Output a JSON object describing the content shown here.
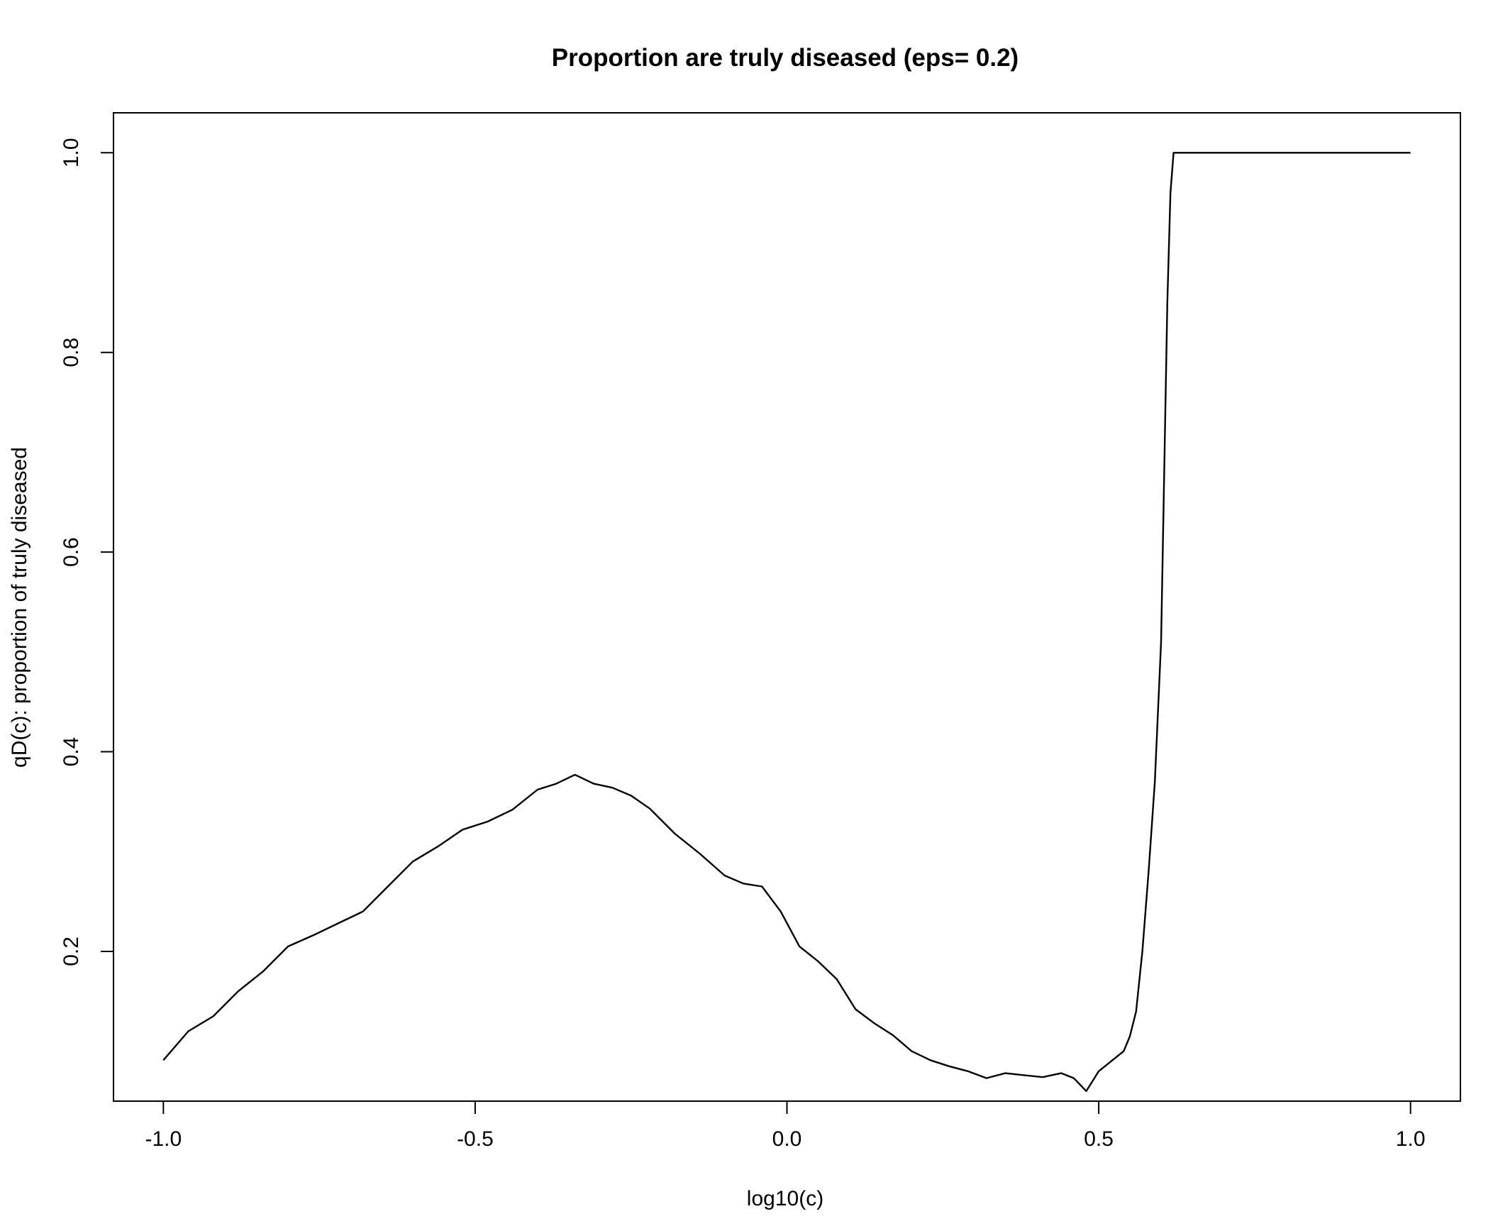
{
  "chart_data": {
    "type": "line",
    "title": "Proportion are truly diseased (eps= 0.2)",
    "xlabel": "log10(c)",
    "ylabel": "qD(c): proportion of truly diseased",
    "xlim": [
      -1.08,
      1.08
    ],
    "ylim": [
      0.05,
      1.04
    ],
    "x_ticks": [
      -1.0,
      -0.5,
      0.0,
      0.5,
      1.0
    ],
    "x_tick_labels": [
      "-1.0",
      "-0.5",
      "0.0",
      "0.5",
      "1.0"
    ],
    "y_ticks": [
      0.2,
      0.4,
      0.6,
      0.8,
      1.0
    ],
    "y_tick_labels": [
      "0.2",
      "0.4",
      "0.6",
      "0.8",
      "1.0"
    ],
    "grid": false,
    "legend": "none",
    "line_color": "#000000",
    "series": [
      {
        "x": [
          -1.0,
          -0.96,
          -0.92,
          -0.88,
          -0.84,
          -0.8,
          -0.76,
          -0.72,
          -0.68,
          -0.64,
          -0.6,
          -0.56,
          -0.52,
          -0.48,
          -0.44,
          -0.4,
          -0.37,
          -0.34,
          -0.31,
          -0.28,
          -0.25,
          -0.22,
          -0.18,
          -0.14,
          -0.1,
          -0.07,
          -0.04,
          -0.01,
          0.02,
          0.05,
          0.08,
          0.11,
          0.14,
          0.17,
          0.2,
          0.23,
          0.26,
          0.29,
          0.32,
          0.35,
          0.38,
          0.41,
          0.44,
          0.46,
          0.48,
          0.5,
          0.52,
          0.54,
          0.55,
          0.56,
          0.57,
          0.58,
          0.59,
          0.6,
          0.605,
          0.61,
          0.615,
          0.62,
          0.65,
          0.8,
          1.0
        ],
        "y": [
          0.091,
          0.12,
          0.135,
          0.16,
          0.18,
          0.205,
          0.216,
          0.228,
          0.24,
          0.265,
          0.29,
          0.305,
          0.322,
          0.33,
          0.342,
          0.362,
          0.368,
          0.377,
          0.368,
          0.364,
          0.356,
          0.343,
          0.318,
          0.298,
          0.276,
          0.268,
          0.265,
          0.24,
          0.205,
          0.19,
          0.172,
          0.142,
          0.128,
          0.116,
          0.1,
          0.091,
          0.085,
          0.08,
          0.073,
          0.078,
          0.076,
          0.074,
          0.078,
          0.073,
          0.06,
          0.08,
          0.09,
          0.1,
          0.115,
          0.14,
          0.2,
          0.28,
          0.37,
          0.51,
          0.68,
          0.85,
          0.96,
          1.0,
          1.0,
          1.0,
          1.0
        ]
      }
    ]
  }
}
